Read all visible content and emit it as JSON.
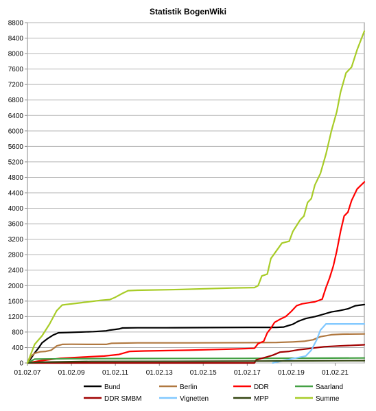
{
  "chart_data": {
    "type": "line",
    "title": "Statistik BogenWiki",
    "xlabel": "",
    "ylabel": "",
    "ylim": [
      0,
      8800
    ],
    "yticks": [
      0,
      400,
      800,
      1200,
      1600,
      2000,
      2400,
      2800,
      3200,
      3600,
      4000,
      4400,
      4800,
      5200,
      5600,
      6000,
      6400,
      6800,
      7200,
      7600,
      8000,
      8400,
      8800
    ],
    "xlim": [
      "2007-02-01",
      "2022-06-01"
    ],
    "xticks": [
      {
        "date": "2007-02-01",
        "label": "01.02.07"
      },
      {
        "date": "2009-02-01",
        "label": "01.02.09"
      },
      {
        "date": "2011-02-01",
        "label": "01.02.11"
      },
      {
        "date": "2013-02-01",
        "label": "01.02.13"
      },
      {
        "date": "2015-02-01",
        "label": "01.02.15"
      },
      {
        "date": "2017-02-01",
        "label": "01.02.17"
      },
      {
        "date": "2019-02-01",
        "label": "01.02.19"
      },
      {
        "date": "2021-02-01",
        "label": "01.02.21"
      }
    ],
    "grid": true,
    "legend_position": "bottom",
    "series": [
      {
        "name": "Bund",
        "color": "#000000",
        "points": [
          [
            "2007-02-01",
            0
          ],
          [
            "2007-04-01",
            120
          ],
          [
            "2007-06-01",
            260
          ],
          [
            "2007-08-01",
            380
          ],
          [
            "2007-10-01",
            520
          ],
          [
            "2008-01-01",
            630
          ],
          [
            "2008-04-01",
            720
          ],
          [
            "2008-07-01",
            780
          ],
          [
            "2009-01-01",
            790
          ],
          [
            "2010-02-01",
            810
          ],
          [
            "2010-09-01",
            830
          ],
          [
            "2010-11-01",
            850
          ],
          [
            "2011-04-01",
            880
          ],
          [
            "2011-06-01",
            905
          ],
          [
            "2012-02-01",
            910
          ],
          [
            "2013-06-01",
            910
          ],
          [
            "2015-06-01",
            915
          ],
          [
            "2017-03-01",
            920
          ],
          [
            "2018-06-01",
            920
          ],
          [
            "2018-10-01",
            930
          ],
          [
            "2018-12-01",
            960
          ],
          [
            "2019-03-01",
            1000
          ],
          [
            "2019-06-01",
            1080
          ],
          [
            "2019-10-01",
            1150
          ],
          [
            "2020-03-01",
            1200
          ],
          [
            "2020-07-01",
            1250
          ],
          [
            "2020-12-01",
            1320
          ],
          [
            "2021-04-01",
            1350
          ],
          [
            "2021-09-01",
            1400
          ],
          [
            "2022-01-01",
            1480
          ],
          [
            "2022-06-01",
            1510
          ]
        ]
      },
      {
        "name": "Berlin",
        "color": "#b07840",
        "points": [
          [
            "2007-02-01",
            0
          ],
          [
            "2007-04-01",
            170
          ],
          [
            "2007-06-01",
            250
          ],
          [
            "2007-09-01",
            290
          ],
          [
            "2007-12-01",
            300
          ],
          [
            "2008-03-01",
            330
          ],
          [
            "2008-06-01",
            440
          ],
          [
            "2008-09-01",
            480
          ],
          [
            "2009-02-01",
            485
          ],
          [
            "2010-02-01",
            480
          ],
          [
            "2010-09-01",
            480
          ],
          [
            "2010-12-01",
            510
          ],
          [
            "2012-02-01",
            520
          ],
          [
            "2014-06-01",
            520
          ],
          [
            "2017-02-01",
            525
          ],
          [
            "2018-06-01",
            530
          ],
          [
            "2019-03-01",
            545
          ],
          [
            "2019-09-01",
            560
          ],
          [
            "2020-02-01",
            600
          ],
          [
            "2020-06-01",
            680
          ],
          [
            "2020-12-01",
            730
          ],
          [
            "2021-06-01",
            745
          ],
          [
            "2022-06-01",
            750
          ]
        ]
      },
      {
        "name": "DDR",
        "color": "#ff0000",
        "points": [
          [
            "2007-02-01",
            0
          ],
          [
            "2007-08-01",
            50
          ],
          [
            "2008-08-01",
            120
          ],
          [
            "2009-08-01",
            150
          ],
          [
            "2010-08-01",
            180
          ],
          [
            "2011-04-01",
            220
          ],
          [
            "2011-10-01",
            300
          ],
          [
            "2012-06-01",
            310
          ],
          [
            "2014-06-01",
            330
          ],
          [
            "2016-06-01",
            360
          ],
          [
            "2017-06-01",
            380
          ],
          [
            "2017-08-01",
            500
          ],
          [
            "2017-11-01",
            560
          ],
          [
            "2018-01-01",
            780
          ],
          [
            "2018-03-01",
            900
          ],
          [
            "2018-05-01",
            1050
          ],
          [
            "2018-08-01",
            1130
          ],
          [
            "2018-11-01",
            1200
          ],
          [
            "2019-02-01",
            1330
          ],
          [
            "2019-05-01",
            1480
          ],
          [
            "2019-08-01",
            1530
          ],
          [
            "2019-12-01",
            1560
          ],
          [
            "2020-03-01",
            1580
          ],
          [
            "2020-07-01",
            1650
          ],
          [
            "2020-09-01",
            1950
          ],
          [
            "2020-11-01",
            2200
          ],
          [
            "2021-01-01",
            2500
          ],
          [
            "2021-03-01",
            2900
          ],
          [
            "2021-05-01",
            3400
          ],
          [
            "2021-07-01",
            3800
          ],
          [
            "2021-09-01",
            3900
          ],
          [
            "2021-11-01",
            4200
          ],
          [
            "2022-02-01",
            4500
          ],
          [
            "2022-06-01",
            4680
          ]
        ]
      },
      {
        "name": "Saarland",
        "color": "#44a044",
        "points": [
          [
            "2007-02-01",
            0
          ],
          [
            "2007-06-01",
            100
          ],
          [
            "2009-01-01",
            110
          ],
          [
            "2012-01-01",
            115
          ],
          [
            "2017-01-01",
            118
          ],
          [
            "2020-01-01",
            125
          ],
          [
            "2022-06-01",
            130
          ]
        ]
      },
      {
        "name": "DDR SMBM",
        "color": "#a00000",
        "points": [
          [
            "2007-02-01",
            0
          ],
          [
            "2017-06-01",
            0
          ],
          [
            "2017-07-01",
            80
          ],
          [
            "2017-10-01",
            120
          ],
          [
            "2018-01-01",
            160
          ],
          [
            "2018-04-01",
            200
          ],
          [
            "2018-08-01",
            280
          ],
          [
            "2019-01-01",
            300
          ],
          [
            "2019-06-01",
            340
          ],
          [
            "2020-01-01",
            380
          ],
          [
            "2020-08-01",
            420
          ],
          [
            "2021-04-01",
            440
          ],
          [
            "2022-06-01",
            470
          ]
        ]
      },
      {
        "name": "Vignetten",
        "color": "#80c8ff",
        "points": [
          [
            "2018-04-01",
            0
          ],
          [
            "2018-10-01",
            60
          ],
          [
            "2019-06-01",
            140
          ],
          [
            "2019-10-01",
            180
          ],
          [
            "2020-01-01",
            330
          ],
          [
            "2020-04-01",
            600
          ],
          [
            "2020-06-01",
            850
          ],
          [
            "2020-09-01",
            1010
          ],
          [
            "2021-06-01",
            1010
          ],
          [
            "2022-06-01",
            1010
          ]
        ]
      },
      {
        "name": "MPP",
        "color": "#334410",
        "points": [
          [
            "2007-02-01",
            0
          ],
          [
            "2007-08-01",
            20
          ],
          [
            "2010-01-01",
            40
          ],
          [
            "2015-01-01",
            45
          ],
          [
            "2020-01-01",
            55
          ],
          [
            "2022-06-01",
            60
          ]
        ]
      },
      {
        "name": "Summe",
        "color": "#a8cc28",
        "points": [
          [
            "2007-02-01",
            0
          ],
          [
            "2007-06-01",
            480
          ],
          [
            "2007-10-01",
            700
          ],
          [
            "2008-02-01",
            1000
          ],
          [
            "2008-06-01",
            1350
          ],
          [
            "2008-09-01",
            1500
          ],
          [
            "2009-06-01",
            1550
          ],
          [
            "2010-06-01",
            1620
          ],
          [
            "2010-11-01",
            1640
          ],
          [
            "2011-02-01",
            1700
          ],
          [
            "2011-06-01",
            1800
          ],
          [
            "2011-09-01",
            1870
          ],
          [
            "2012-02-01",
            1880
          ],
          [
            "2014-02-01",
            1900
          ],
          [
            "2016-06-01",
            1940
          ],
          [
            "2017-06-01",
            1950
          ],
          [
            "2017-08-01",
            2000
          ],
          [
            "2017-10-01",
            2250
          ],
          [
            "2018-01-01",
            2300
          ],
          [
            "2018-03-01",
            2700
          ],
          [
            "2018-09-01",
            3100
          ],
          [
            "2019-01-01",
            3150
          ],
          [
            "2019-03-01",
            3400
          ],
          [
            "2019-07-01",
            3700
          ],
          [
            "2019-09-01",
            3800
          ],
          [
            "2019-11-01",
            4150
          ],
          [
            "2020-01-01",
            4250
          ],
          [
            "2020-03-01",
            4600
          ],
          [
            "2020-06-01",
            4900
          ],
          [
            "2020-09-01",
            5400
          ],
          [
            "2020-12-01",
            6000
          ],
          [
            "2021-03-01",
            6500
          ],
          [
            "2021-05-01",
            7000
          ],
          [
            "2021-08-01",
            7500
          ],
          [
            "2021-11-01",
            7650
          ],
          [
            "2022-02-01",
            8100
          ],
          [
            "2022-06-01",
            8580
          ]
        ]
      }
    ]
  }
}
